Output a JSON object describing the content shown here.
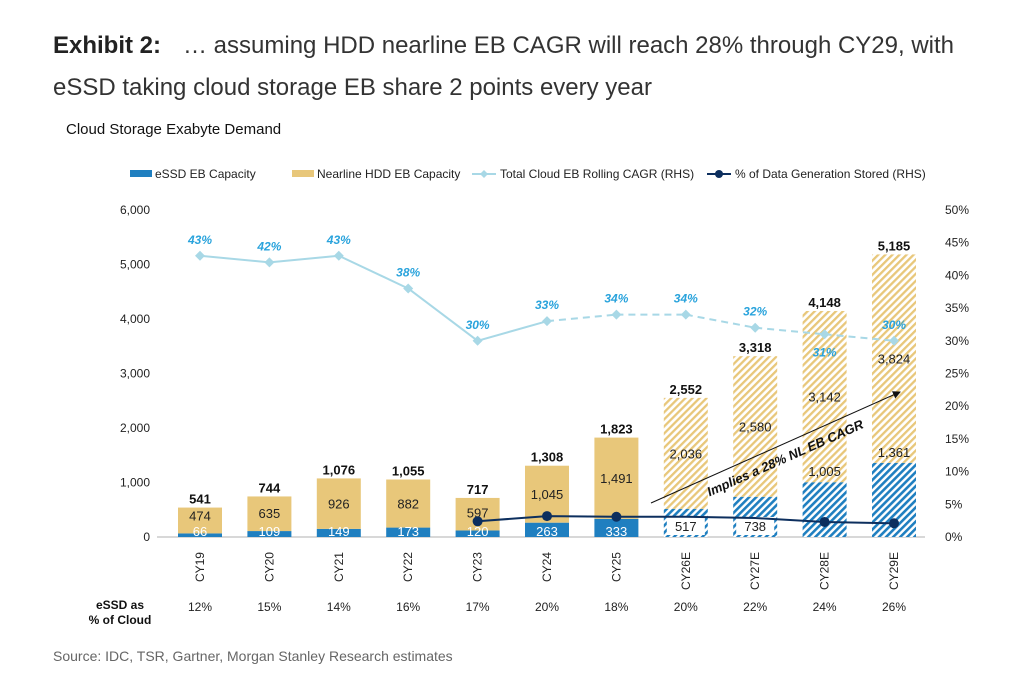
{
  "header": {
    "exhibit": "Exhibit 2:",
    "title": "… assuming HDD nearline EB CAGR will reach 28% through CY29, with eSSD taking cloud storage EB share 2 points every year"
  },
  "source": "Source: IDC, TSR, Gartner, Morgan Stanley Research estimates",
  "chart_data": {
    "type": "bar",
    "title": "Cloud Storage Exabyte Demand",
    "categories": [
      "CY19",
      "CY20",
      "CY21",
      "CY22",
      "CY23",
      "CY24",
      "CY25",
      "CY26E",
      "CY27E",
      "CY28E",
      "CY29E"
    ],
    "estimate_from": "CY26E",
    "series": [
      {
        "name": "eSSD EB Capacity",
        "type": "stacked-bar",
        "color": "#1f7fc0",
        "values": [
          66,
          109,
          149,
          173,
          120,
          263,
          333,
          517,
          738,
          1005,
          1361
        ]
      },
      {
        "name": "Nearline HDD EB Capacity",
        "type": "stacked-bar",
        "color": "#e8c77a",
        "values": [
          474,
          635,
          926,
          882,
          597,
          1045,
          1491,
          2036,
          2580,
          3142,
          3824
        ]
      },
      {
        "name": "Total Cloud EB Rolling CAGR (RHS)",
        "type": "line",
        "color": "#a8d8e6",
        "label_color": "#29a3dc",
        "values": [
          43,
          42,
          43,
          38,
          30,
          33,
          34,
          34,
          32,
          31,
          30
        ],
        "labels": [
          "43%",
          "42%",
          "43%",
          "38%",
          "30%",
          "33%",
          "34%",
          "34%",
          "32%",
          "31%",
          "30%"
        ]
      },
      {
        "name": "% of Data Generation Stored (RHS)",
        "type": "line",
        "color": "#0d2f5e",
        "values": [
          null,
          null,
          null,
          null,
          2.4,
          3.2,
          3.1,
          3.1,
          2.9,
          2.3,
          2.1
        ]
      }
    ],
    "totals": [
      "541",
      "744",
      "1,076",
      "1,055",
      "717",
      "1,308",
      "1,823",
      "2,552",
      "3,318",
      "4,148",
      "5,185"
    ],
    "essd_labels": [
      "66",
      "109",
      "149",
      "173",
      "120",
      "263",
      "333",
      "517",
      "738",
      "1,005",
      "1,361"
    ],
    "nl_labels": [
      "474",
      "635",
      "926",
      "882",
      "597",
      "1,045",
      "1,491",
      "2,036",
      "2,580",
      "3,142",
      "3,824"
    ],
    "ylim": [
      0,
      6000
    ],
    "yticks": [
      "0",
      "1,000",
      "2,000",
      "3,000",
      "4,000",
      "5,000",
      "6,000"
    ],
    "y2lim": [
      0,
      50
    ],
    "y2ticks": [
      "0%",
      "5%",
      "10%",
      "15%",
      "20%",
      "25%",
      "30%",
      "35%",
      "40%",
      "45%",
      "50%"
    ],
    "legend_position": "top",
    "annotation": "Implies a 28% NL EB CAGR",
    "essd_share_label": [
      "eSSD as",
      "% of Cloud"
    ],
    "essd_share": [
      "12%",
      "15%",
      "14%",
      "16%",
      "17%",
      "20%",
      "18%",
      "20%",
      "22%",
      "24%",
      "26%"
    ]
  }
}
